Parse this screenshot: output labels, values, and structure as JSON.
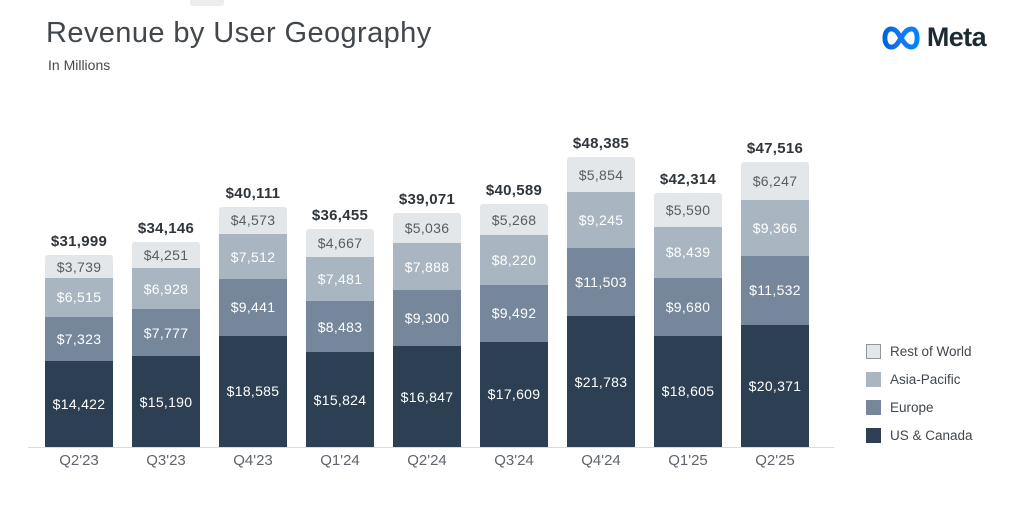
{
  "header": {
    "title": "Revenue by User Geography",
    "subtitle": "In Millions",
    "brand": "Meta"
  },
  "brand_colors": {
    "logo_gradient_start": "#0064e0",
    "logo_gradient_mid": "#1778f2",
    "logo_gradient_end": "#0082fb",
    "wordmark": "#1c2b33"
  },
  "chart_data": {
    "type": "bar",
    "stacked": true,
    "title": "Revenue by User Geography",
    "subtitle": "In Millions",
    "value_prefix": "$",
    "grid": false,
    "legend_position": "right",
    "ylim": [
      0,
      48385
    ],
    "categories": [
      "Q2'23",
      "Q3'23",
      "Q4'23",
      "Q1'24",
      "Q2'24",
      "Q3'24",
      "Q4'24",
      "Q1'25",
      "Q2'25"
    ],
    "series": [
      {
        "name": "US & Canada",
        "color": "#2d4053",
        "label_color": "#ffffff",
        "values": [
          14422,
          15190,
          18585,
          15824,
          16847,
          17609,
          21783,
          18605,
          20371
        ]
      },
      {
        "name": "Europe",
        "color": "#76879b",
        "label_color": "#ffffff",
        "values": [
          7323,
          7777,
          9441,
          8483,
          9300,
          9492,
          11503,
          9680,
          11532
        ]
      },
      {
        "name": "Asia-Pacific",
        "color": "#a9b5c1",
        "label_color": "#ffffff",
        "values": [
          6515,
          6928,
          7512,
          7481,
          7888,
          8220,
          9245,
          8439,
          9366
        ]
      },
      {
        "name": "Rest of World",
        "color": "#e3e7e9",
        "label_color": "#575d63",
        "values": [
          3739,
          4251,
          4573,
          4667,
          5036,
          5268,
          5854,
          5590,
          6247
        ]
      }
    ],
    "totals": [
      31999,
      34146,
      40111,
      36455,
      39071,
      40589,
      48385,
      42314,
      47516
    ],
    "legend_order": [
      "Rest of World",
      "Asia-Pacific",
      "Europe",
      "US & Canada"
    ]
  }
}
